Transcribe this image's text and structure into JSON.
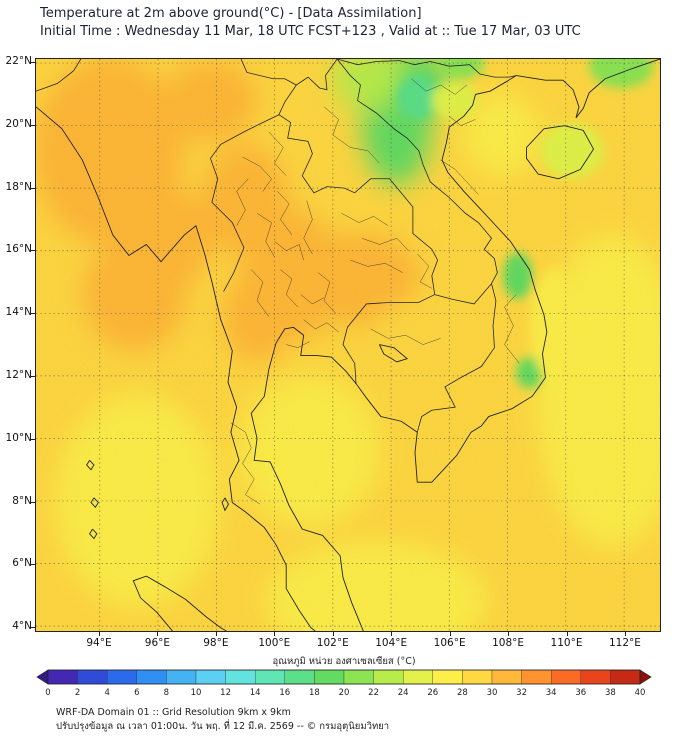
{
  "header": {
    "title": "Temperature at 2m above ground(°C) - [Data Assimilation]",
    "subtitle": "Initial Time : Wednesday 11 Mar, 18 UTC FCST+123 , Valid at :: Tue 17 Mar, 03 UTC"
  },
  "map": {
    "lat_ticks": [
      "22°N",
      "20°N",
      "18°N",
      "16°N",
      "14°N",
      "12°N",
      "10°N",
      "8°N",
      "6°N",
      "4°N"
    ],
    "lon_ticks": [
      "94°E",
      "96°E",
      "98°E",
      "100°E",
      "102°E",
      "104°E",
      "106°E",
      "108°E",
      "110°E",
      "112°E"
    ]
  },
  "colorbar": {
    "label": "อุณหภูมิ หน่วย องศาเซลเซียส (°C)",
    "ticks": [
      0,
      2,
      4,
      6,
      8,
      10,
      12,
      14,
      16,
      18,
      20,
      22,
      24,
      26,
      28,
      30,
      32,
      34,
      36,
      38,
      40
    ],
    "under_color": "#321a86",
    "over_color": "#8e0e0c",
    "segment_colors": [
      "#4328b4",
      "#2f4bd8",
      "#2b6beb",
      "#2f8ff2",
      "#45b2f4",
      "#5bd0f2",
      "#63e3e0",
      "#5fe6b4",
      "#5bdf88",
      "#63db62",
      "#8ce452",
      "#b8ec4b",
      "#e2f24a",
      "#fdee49",
      "#ffd842",
      "#ffb839",
      "#ff9330",
      "#fb6b26",
      "#e8451d",
      "#c62914"
    ]
  },
  "footer": {
    "line1": "WRF-DA Domain 01 :: Grid Resolution 9km x 9km",
    "line2": "ปรับปรุงข้อมูล ณ เวลา 01:00น. วัน พฤ. ที่ 12 มี.ค. 2569 -- © กรมอุตุนิยมวิทยา"
  },
  "chart_data": {
    "type": "heatmap",
    "title": "Temperature at 2m above ground (°C), WRF-DA Domain 01",
    "unit": "°C",
    "lon_range": [
      91.8,
      113.2
    ],
    "lat_range": [
      3.8,
      22.1
    ],
    "scale_min": 0,
    "scale_max": 40,
    "scale_step": 2,
    "base_temp_c": 29,
    "regions": [
      {
        "name": "myanmar-interior",
        "lon": 94.3,
        "lat": 19.2,
        "rx": 2.6,
        "ry": 3.0,
        "temp_c": 31
      },
      {
        "name": "myanmar-coast",
        "lon": 96.3,
        "lat": 16.4,
        "rx": 1.6,
        "ry": 1.6,
        "temp_c": 30.5
      },
      {
        "name": "irrawaddy-delta",
        "lon": 95.2,
        "lat": 14.6,
        "rx": 1.8,
        "ry": 1.8,
        "temp_c": 30
      },
      {
        "name": "shan-hills",
        "lon": 97.8,
        "lat": 20.8,
        "rx": 1.6,
        "ry": 1.3,
        "temp_c": 30
      },
      {
        "name": "nw-thailand",
        "lon": 99.0,
        "lat": 17.6,
        "rx": 1.5,
        "ry": 1.8,
        "temp_c": 30.5
      },
      {
        "name": "central-thailand",
        "lon": 100.6,
        "lat": 15.2,
        "rx": 1.7,
        "ry": 2.1,
        "temp_c": 31
      },
      {
        "name": "west-thailand",
        "lon": 99.4,
        "lat": 13.9,
        "rx": 1.2,
        "ry": 1.5,
        "temp_c": 30.5
      },
      {
        "name": "korat-plateau",
        "lon": 102.9,
        "lat": 15.1,
        "rx": 2.1,
        "ry": 1.5,
        "temp_c": 30
      },
      {
        "name": "cambodia-plain",
        "lon": 105.2,
        "lat": 13.2,
        "rx": 1.9,
        "ry": 1.3,
        "temp_c": 29.5
      },
      {
        "name": "n-vietnam-highlands",
        "lon": 104.2,
        "lat": 20.1,
        "rx": 1.2,
        "ry": 2.0,
        "temp_c": 19.5
      },
      {
        "name": "ne-vietnam",
        "lon": 104.7,
        "lat": 21.4,
        "rx": 1.4,
        "ry": 1.0,
        "temp_c": 19
      },
      {
        "name": "n-laos",
        "lon": 103.2,
        "lat": 21.5,
        "rx": 1.2,
        "ry": 1.0,
        "temp_c": 22
      },
      {
        "name": "viet-bac-core",
        "lon": 104.9,
        "lat": 20.9,
        "rx": 0.7,
        "ry": 0.7,
        "temp_c": 17
      },
      {
        "name": "cao-bang",
        "lon": 106.4,
        "lat": 22.0,
        "rx": 0.8,
        "ry": 0.5,
        "temp_c": 21
      },
      {
        "name": "c-vietnam-highlands",
        "lon": 108.35,
        "lat": 15.2,
        "rx": 0.5,
        "ry": 0.75,
        "temp_c": 19.5
      },
      {
        "name": "dalat-highlands",
        "lon": 108.75,
        "lat": 12.1,
        "rx": 0.45,
        "ry": 0.5,
        "temp_c": 19.5
      },
      {
        "name": "guangdong-coast",
        "lon": 111.9,
        "lat": 21.9,
        "rx": 1.1,
        "ry": 0.7,
        "temp_c": 21
      },
      {
        "name": "red-river-delta",
        "lon": 106.2,
        "lat": 20.8,
        "rx": 0.8,
        "ry": 0.6,
        "temp_c": 24
      },
      {
        "name": "gulf-of-tonkin",
        "lon": 107.8,
        "lat": 19.7,
        "rx": 1.3,
        "ry": 1.3,
        "temp_c": 26
      },
      {
        "name": "hainan",
        "lon": 110.2,
        "lat": 19.2,
        "rx": 1.1,
        "ry": 0.9,
        "temp_c": 25.5
      },
      {
        "name": "gulf-of-thailand",
        "lon": 101.2,
        "lat": 9.6,
        "rx": 2.4,
        "ry": 2.4,
        "temp_c": 27.5
      },
      {
        "name": "andaman-sea",
        "lon": 95.3,
        "lat": 8.0,
        "rx": 2.8,
        "ry": 3.4,
        "temp_c": 27.5
      },
      {
        "name": "south-china-sea",
        "lon": 111.6,
        "lat": 11.5,
        "rx": 2.6,
        "ry": 5.0,
        "temp_c": 27.5
      },
      {
        "name": "lower-gulf",
        "lon": 103.5,
        "lat": 4.8,
        "rx": 3.8,
        "ry": 1.9,
        "temp_c": 27
      },
      {
        "name": "vietnam-se-coast",
        "lon": 109.6,
        "lat": 13.6,
        "rx": 0.8,
        "ry": 1.8,
        "temp_c": 27.5
      },
      {
        "name": "malay-peninsula-south",
        "lon": 101.9,
        "lat": 4.3,
        "rx": 1.4,
        "ry": 1.3,
        "temp_c": 27.5
      }
    ]
  }
}
